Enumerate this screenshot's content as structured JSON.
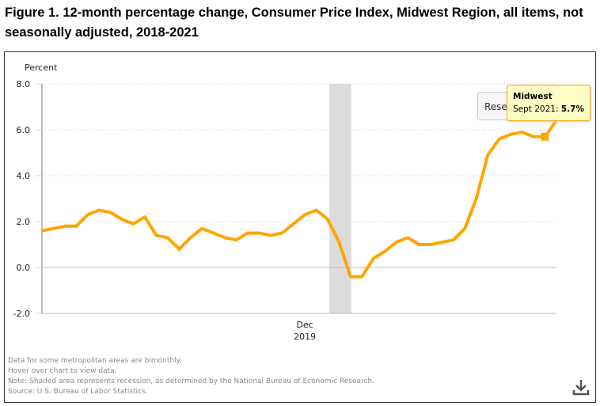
{
  "title": "Figure 1. 12-month percentage change, Consumer Price Index, Midwest Region, all items, not seasonally adjusted, 2018-2021",
  "reset_label": "Reset zoom",
  "tooltip": {
    "series": "Midwest",
    "label": "Sept 2021: ",
    "value": "5.7%"
  },
  "footnotes": [
    "Data for some metropolitan areas are bimonthly.",
    "Hover over chart to view data.",
    "Note: Shaded area represents recession, as determined by the National Bureau of Economic Research.",
    "Source: U.S. Bureau of Labor Statistics."
  ],
  "icons": {
    "download": "download-icon"
  },
  "chart_data": {
    "type": "line",
    "ylabel": "Percent",
    "ylim": [
      -2,
      8
    ],
    "yticks": [
      "8.0",
      "6.0",
      "4.0",
      "2.0",
      "0.0",
      "-2.0"
    ],
    "xtick": {
      "month": "Dec",
      "year": "2019"
    },
    "grid": true,
    "color": "#ffa500",
    "recession": {
      "start": "2020-02",
      "end": "2020-04",
      "color": "#dcdcdc"
    },
    "highlight": {
      "date": "2021-09",
      "value": 5.7
    },
    "start": "2018-01",
    "series": [
      {
        "name": "Midwest",
        "values": [
          1.6,
          1.7,
          1.8,
          1.8,
          2.3,
          2.5,
          2.4,
          2.1,
          1.9,
          2.2,
          1.4,
          1.3,
          0.8,
          1.3,
          1.7,
          1.5,
          1.3,
          1.2,
          1.5,
          1.5,
          1.4,
          1.5,
          1.9,
          2.3,
          2.5,
          2.1,
          1.1,
          -0.4,
          -0.4,
          0.4,
          0.7,
          1.1,
          1.3,
          1.0,
          1.0,
          1.1,
          1.2,
          1.7,
          3.0,
          4.9,
          5.6,
          5.8,
          5.9,
          5.7,
          5.7,
          6.4
        ]
      }
    ]
  }
}
